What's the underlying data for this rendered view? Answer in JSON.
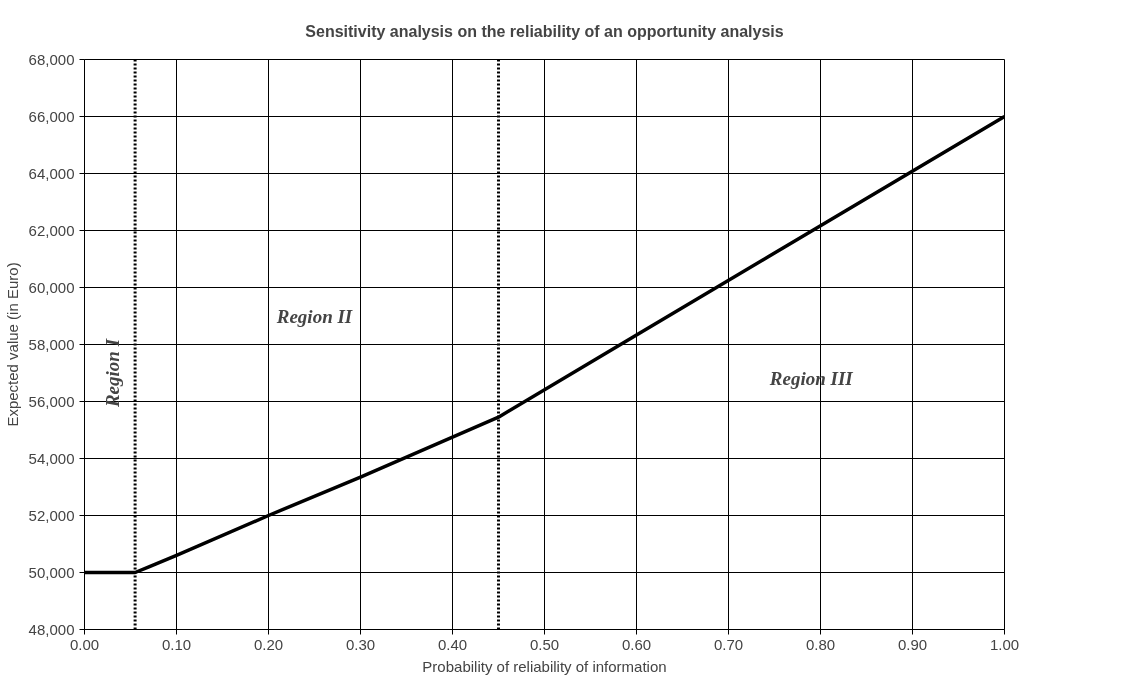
{
  "chart_data": {
    "type": "line",
    "title": "Sensitivity analysis on the reliability of an opportunity analysis",
    "xlabel": "Probability of reliability of information",
    "ylabel": "Expected value (in Euro)",
    "x": [
      0.0,
      0.055,
      0.07,
      0.1,
      0.2,
      0.3,
      0.45,
      0.6,
      0.8,
      1.0
    ],
    "series": [
      {
        "color": "#000000",
        "values": [
          50000,
          50000,
          50200,
          50600,
          52000,
          53350,
          55450,
          58330,
          62170,
          66000
        ]
      }
    ],
    "xlim": [
      0,
      1
    ],
    "xticks": [
      {
        "value": 0,
        "label": "0.00"
      },
      {
        "value": 0.1,
        "label": "0.10"
      },
      {
        "value": 0.2,
        "label": "0.20"
      },
      {
        "value": 0.3,
        "label": "0.30"
      },
      {
        "value": 0.4,
        "label": "0.40"
      },
      {
        "value": 0.5,
        "label": "0.50"
      },
      {
        "value": 0.6,
        "label": "0.60"
      },
      {
        "value": 0.7,
        "label": "0.70"
      },
      {
        "value": 0.8,
        "label": "0.80"
      },
      {
        "value": 0.9,
        "label": "0.90"
      },
      {
        "value": 1,
        "label": "1.00"
      }
    ],
    "ylim": [
      48000,
      68000
    ],
    "yticks": [
      {
        "value": 48000,
        "label": "48,000"
      },
      {
        "value": 50000,
        "label": "50,000"
      },
      {
        "value": 52000,
        "label": "52,000"
      },
      {
        "value": 54000,
        "label": "54,000"
      },
      {
        "value": 56000,
        "label": "56,000"
      },
      {
        "value": 58000,
        "label": "58,000"
      },
      {
        "value": 60000,
        "label": "60,000"
      },
      {
        "value": 62000,
        "label": "62,000"
      },
      {
        "value": 64000,
        "label": "64,000"
      },
      {
        "value": 66000,
        "label": "66,000"
      },
      {
        "value": 68000,
        "label": "68,000"
      }
    ],
    "ref_lines": [
      {
        "axis": "x",
        "value": 0.055,
        "color": "#000000",
        "line_style": "dotted"
      },
      {
        "axis": "x",
        "value": 0.45,
        "color": "#000000",
        "line_style": "dotted"
      }
    ],
    "annotations": [
      "Region I",
      "Region II",
      "Region III"
    ],
    "grid": true,
    "line_style": "solid"
  }
}
